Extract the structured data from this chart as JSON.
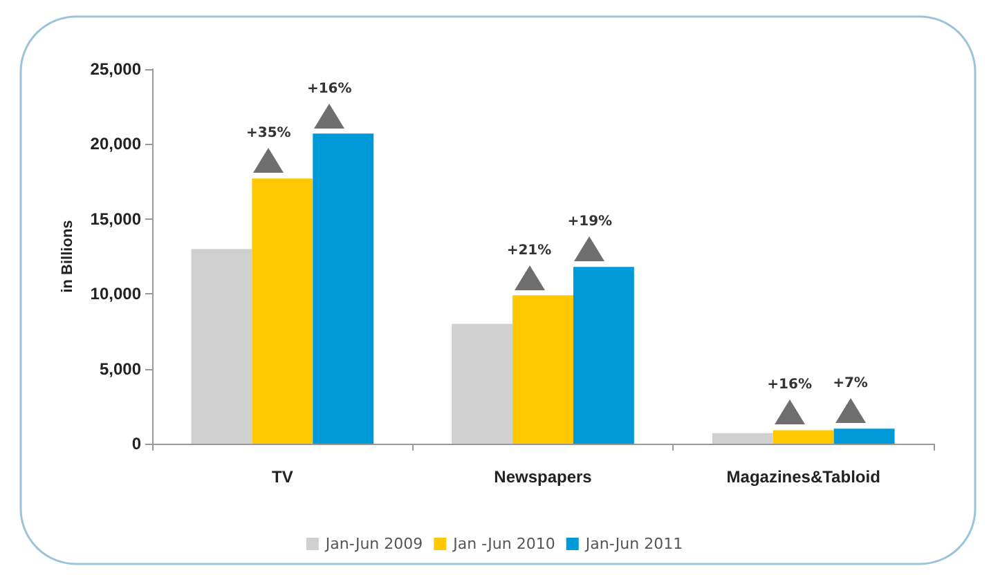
{
  "chart_data": {
    "type": "bar",
    "ylabel": "in Billions",
    "categories": [
      "TV",
      "Newspapers",
      "Magazines&Tabloid"
    ],
    "series": [
      {
        "name": "Jan-Jun 2009",
        "color": "#d0d0d0",
        "values": [
          13000,
          8000,
          700
        ]
      },
      {
        "name": "Jan -Jun 2010",
        "color": "#ffc800",
        "values": [
          17700,
          9900,
          900
        ]
      },
      {
        "name": "Jan-Jun 2011",
        "color": "#0099d8",
        "values": [
          20700,
          11800,
          1000
        ]
      }
    ],
    "annotations": [
      "+35%",
      "+16%",
      "+21%",
      "+19%",
      "+16%",
      "+7%"
    ],
    "ylim": [
      0,
      25000
    ],
    "yticks": [
      {
        "value": 0,
        "label": "0"
      },
      {
        "value": 5000,
        "label": "5,000"
      },
      {
        "value": 10000,
        "label": "10,000"
      },
      {
        "value": 15000,
        "label": "15,000"
      },
      {
        "value": 20000,
        "label": "20,000"
      },
      {
        "value": 25000,
        "label": "25,000"
      }
    ],
    "grid": false,
    "legend": "bottom"
  }
}
